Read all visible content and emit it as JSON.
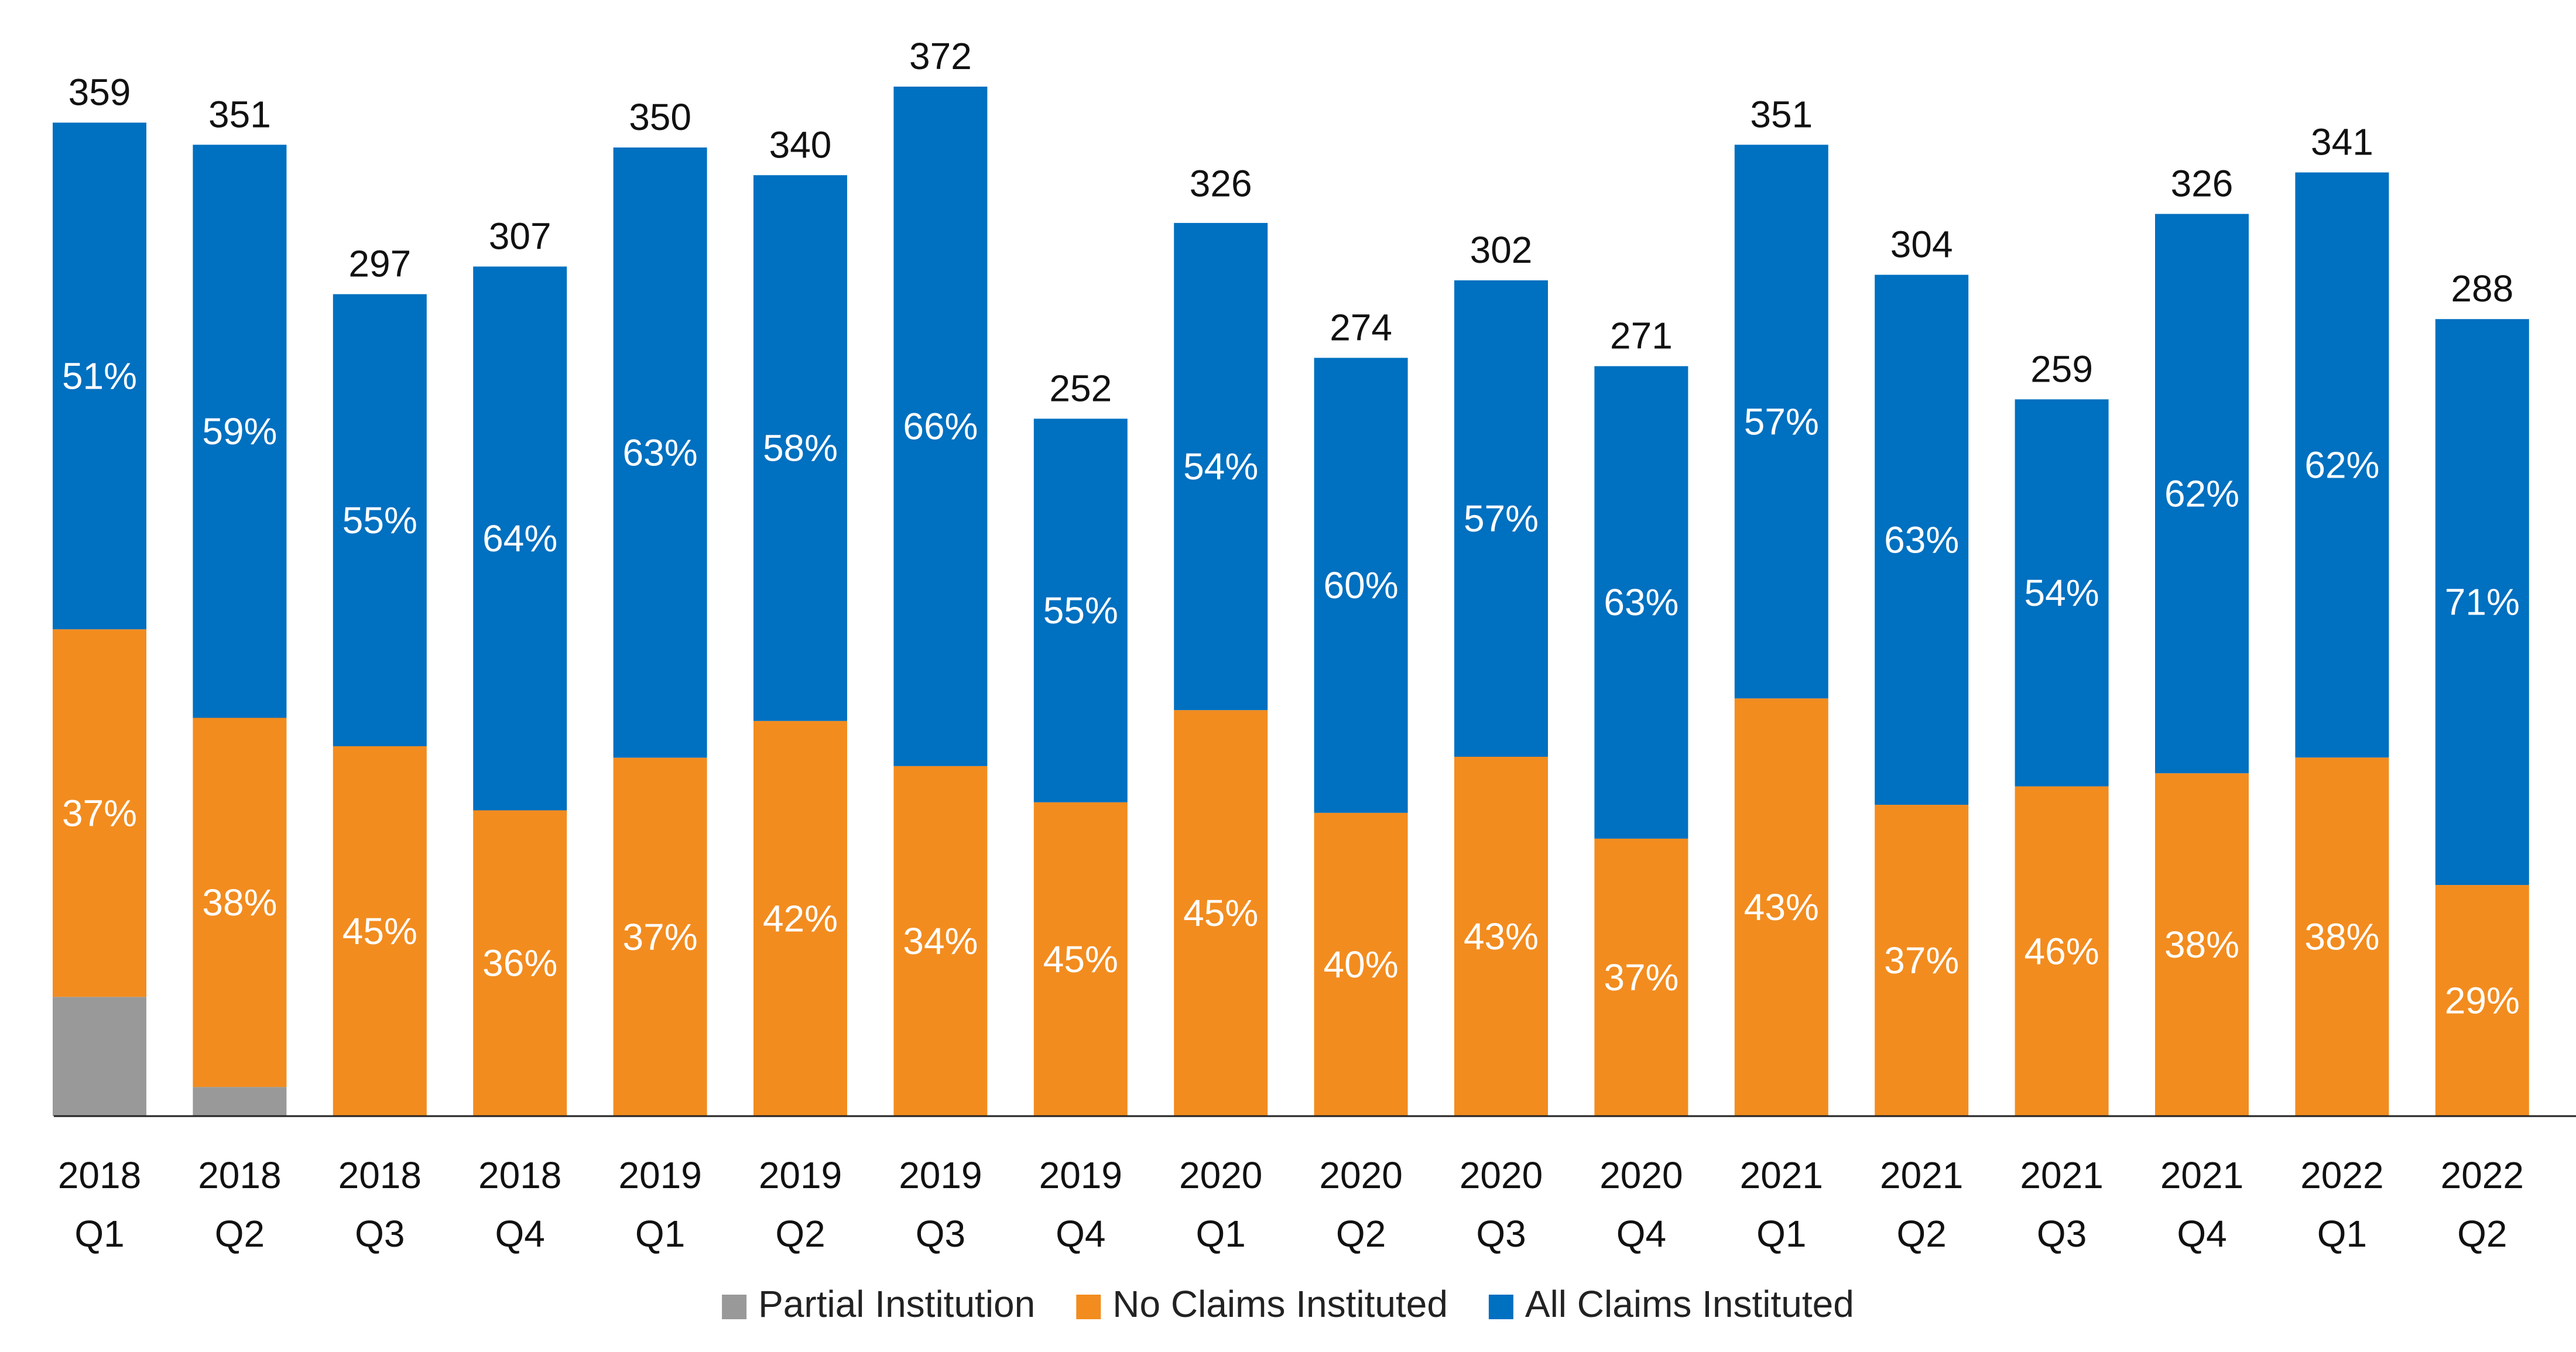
{
  "chart_data": {
    "type": "bar",
    "stacked": true,
    "categories": [
      [
        "2018",
        "Q1"
      ],
      [
        "2018",
        "Q2"
      ],
      [
        "2018",
        "Q3"
      ],
      [
        "2018",
        "Q4"
      ],
      [
        "2019",
        "Q1"
      ],
      [
        "2019",
        "Q2"
      ],
      [
        "2019",
        "Q3"
      ],
      [
        "2019",
        "Q4"
      ],
      [
        "2020",
        "Q1"
      ],
      [
        "2020",
        "Q2"
      ],
      [
        "2020",
        "Q3"
      ],
      [
        "2020",
        "Q4"
      ],
      [
        "2021",
        "Q1"
      ],
      [
        "2021",
        "Q2"
      ],
      [
        "2021",
        "Q3"
      ],
      [
        "2021",
        "Q4"
      ],
      [
        "2022",
        "Q1"
      ],
      [
        "2022",
        "Q2"
      ]
    ],
    "totals": [
      359,
      351,
      297,
      307,
      350,
      340,
      372,
      252,
      326,
      274,
      302,
      271,
      351,
      304,
      259,
      326,
      341,
      288
    ],
    "series": [
      {
        "name": "Partial Institution",
        "color": "#999999",
        "values_pct": [
          12,
          3,
          0,
          0,
          0,
          0,
          0,
          0,
          0,
          0,
          0,
          0,
          0,
          0,
          0,
          0,
          0,
          0
        ],
        "labels": [
          "",
          "",
          "",
          "",
          "",
          "",
          "",
          "",
          "",
          "",
          "",
          "",
          "",
          "",
          "",
          "",
          "",
          ""
        ]
      },
      {
        "name": "No Claims Instituted",
        "color": "#F28C1F",
        "values_pct": [
          37,
          38,
          45,
          36,
          37,
          42,
          34,
          45,
          45,
          40,
          43,
          37,
          43,
          37,
          46,
          38,
          38,
          29
        ],
        "labels": [
          "37%",
          "38%",
          "45%",
          "36%",
          "37%",
          "42%",
          "34%",
          "45%",
          "45%",
          "40%",
          "43%",
          "37%",
          "43%",
          "37%",
          "46%",
          "38%",
          "38%",
          "29%"
        ]
      },
      {
        "name": "All Claims Instituted",
        "color": "#0070C0",
        "values_pct": [
          51,
          59,
          55,
          64,
          63,
          58,
          66,
          55,
          54,
          60,
          57,
          63,
          57,
          63,
          54,
          62,
          62,
          71
        ],
        "labels": [
          "51%",
          "59%",
          "55%",
          "64%",
          "63%",
          "58%",
          "66%",
          "55%",
          "54%",
          "60%",
          "57%",
          "63%",
          "57%",
          "63%",
          "54%",
          "62%",
          "62%",
          "71%"
        ]
      }
    ],
    "ylim": [
      0,
      372
    ],
    "grid": false,
    "legend_position": "bottom-center"
  }
}
